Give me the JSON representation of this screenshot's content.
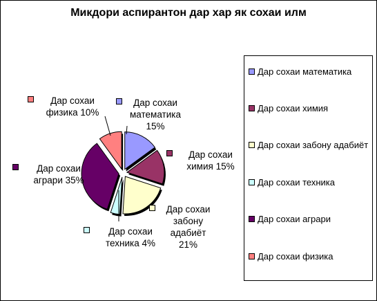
{
  "chart_data": {
    "type": "pie",
    "title": "Микдори аспирантон дар хар як сохаи илм",
    "legend_position": "right",
    "slices": [
      {
        "name": "Дар сохаи математика",
        "value": 15,
        "label_lines": [
          "Дар сохаи",
          "математика",
          "15%"
        ],
        "color": "#9999ff"
      },
      {
        "name": "Дар сохаи химия",
        "value": 15,
        "label_lines": [
          "Дар сохаи",
          "химия 15%"
        ],
        "color": "#993366"
      },
      {
        "name": "Дар сохаи забону адабиёт",
        "value": 21,
        "label_lines": [
          "Дар сохаи",
          "забону",
          "адабиёт",
          "21%"
        ],
        "color": "#ffffcc"
      },
      {
        "name": "Дар сохаи техника",
        "value": 4,
        "label_lines": [
          "Дар сохаи",
          "техника  4%"
        ],
        "color": "#ccffff"
      },
      {
        "name": "Дар сохаи аграри",
        "value": 35,
        "label_lines": [
          "Дар сохаи",
          "аграри 35%"
        ],
        "color": "#660066"
      },
      {
        "name": "Дар сохаи  физика",
        "value": 10,
        "label_lines": [
          "Дар сохаи",
          "физика 10%"
        ],
        "color": "#ff8080"
      }
    ]
  }
}
